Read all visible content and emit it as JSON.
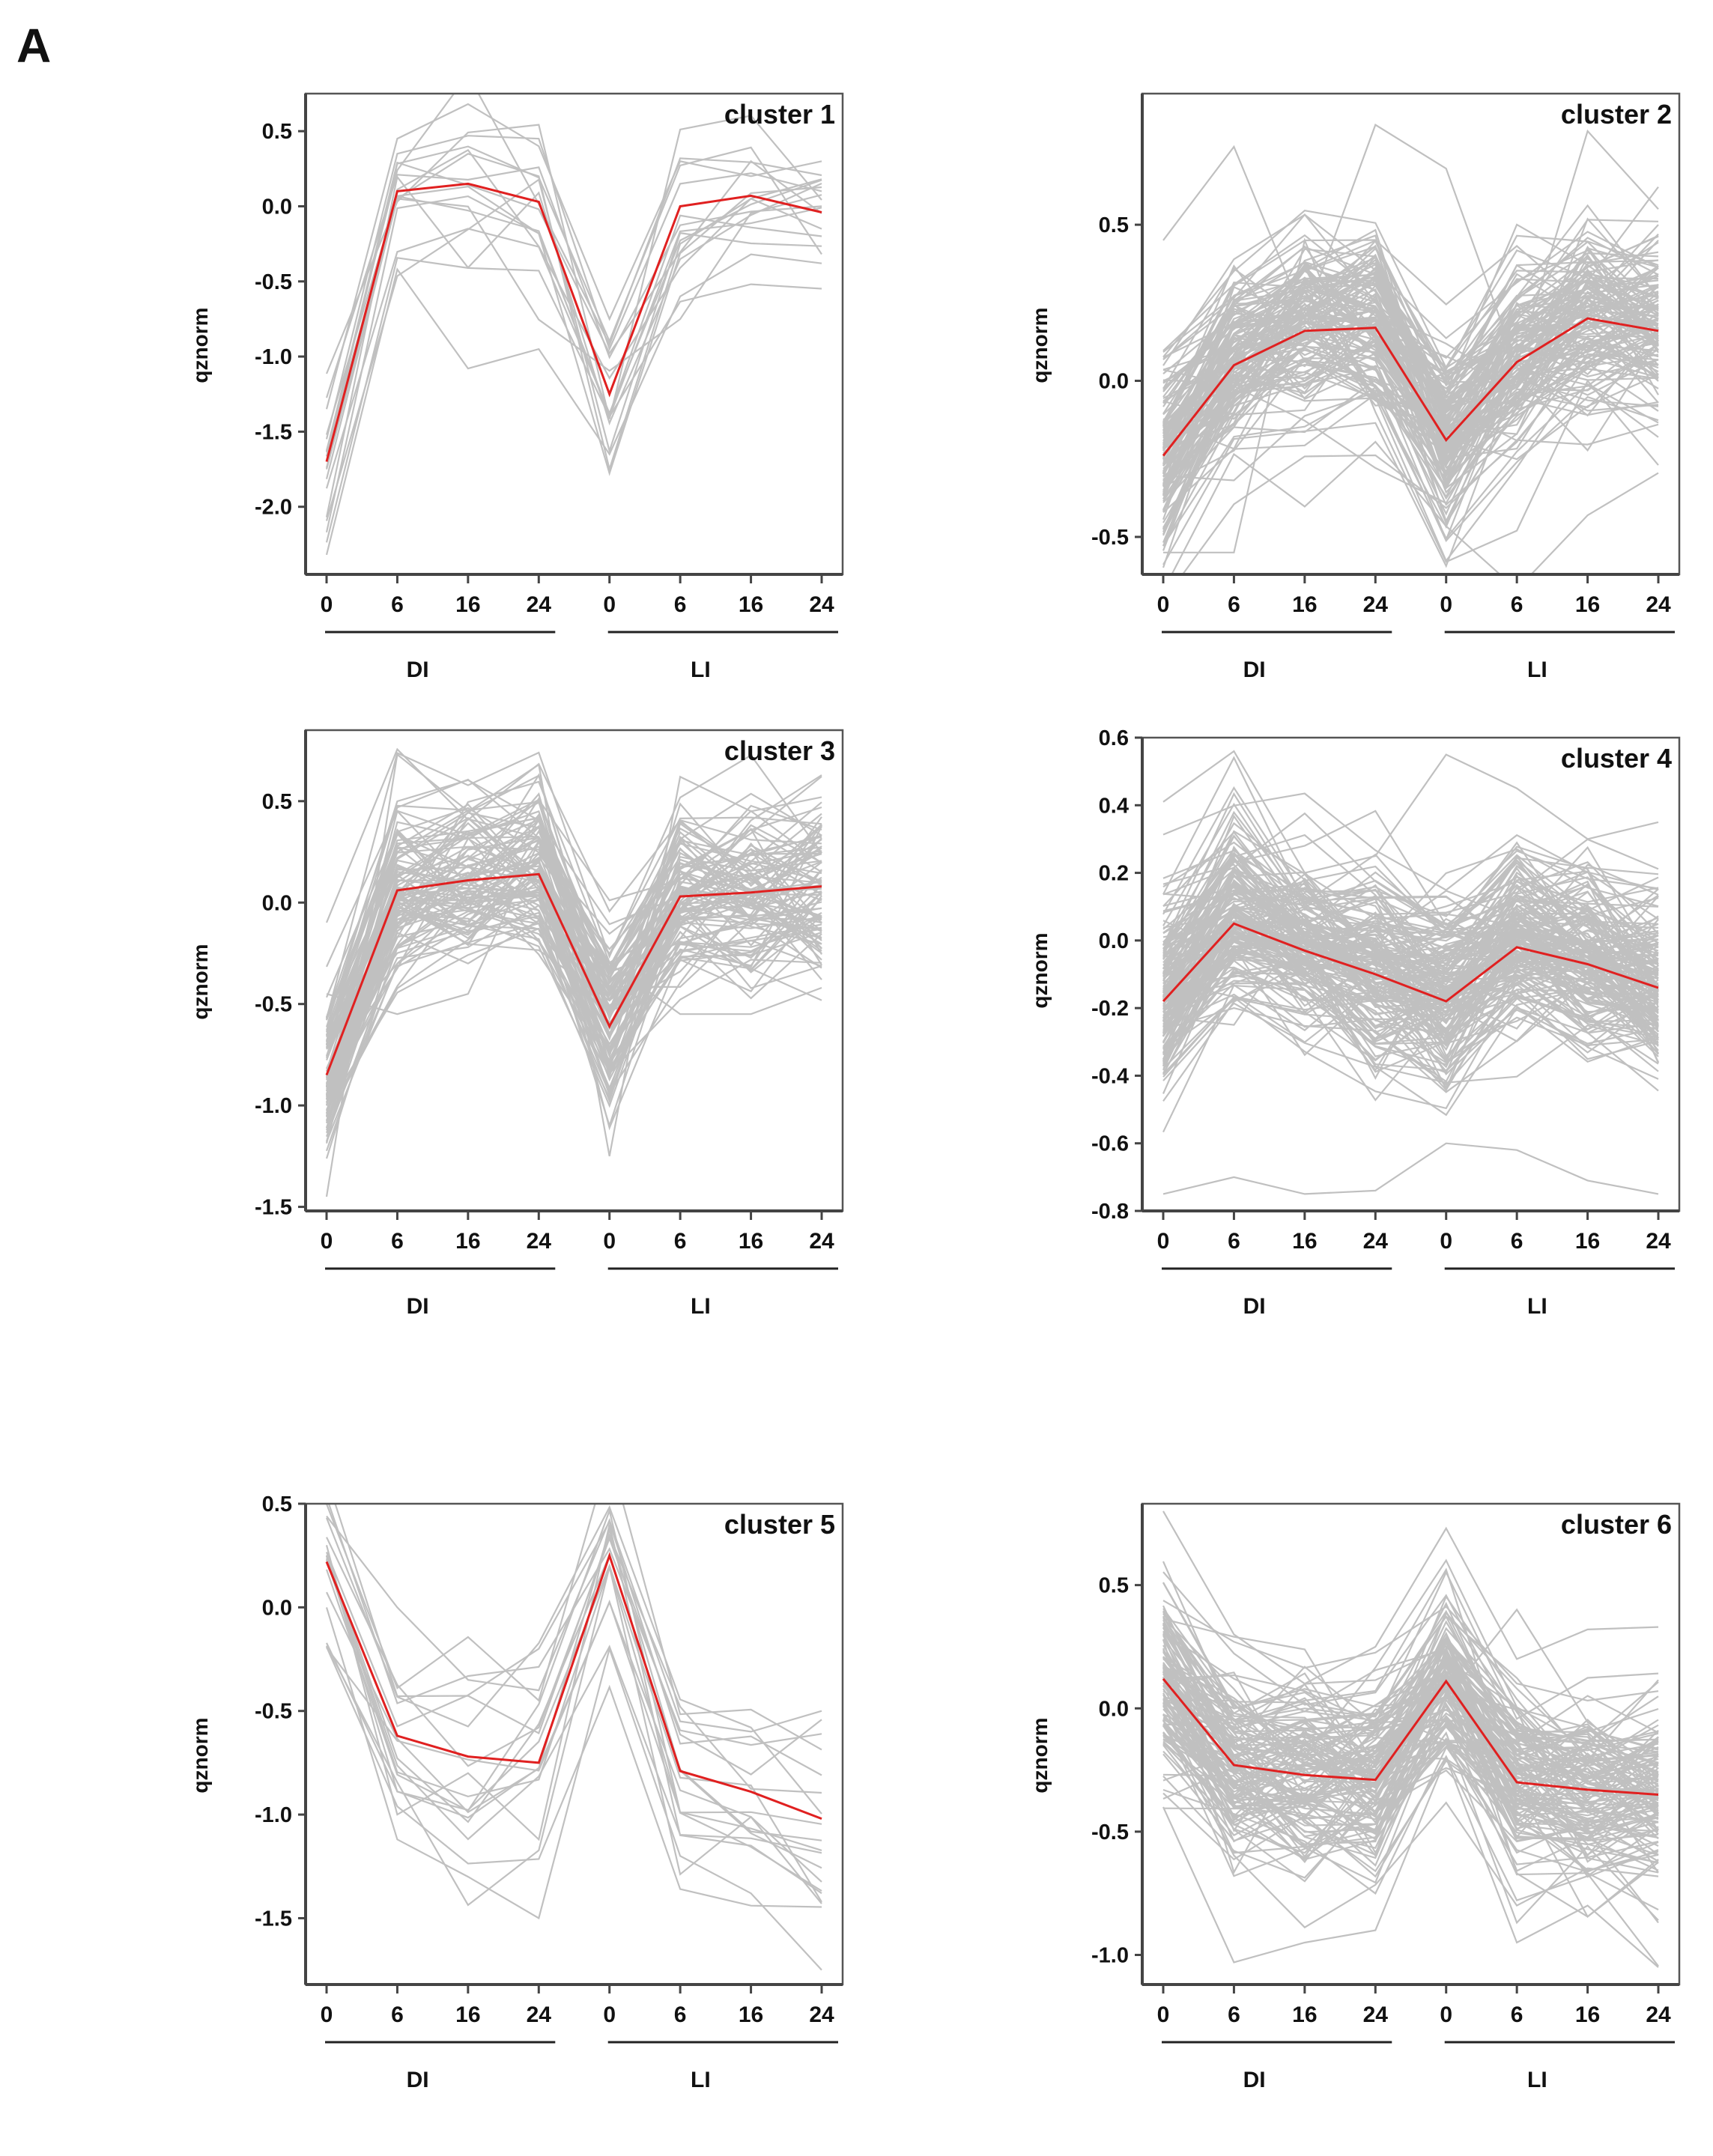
{
  "figure": {
    "panel_letter": "A",
    "colors": {
      "background_line": "#c0c0c0",
      "mean_line": "#e02020",
      "axis": "#444444",
      "text": "#111111"
    }
  },
  "chart_data": [
    {
      "type": "line",
      "title": "cluster 1",
      "ylabel": "qznorm",
      "ylim": [
        -2.45,
        0.75
      ],
      "yticks": [
        -2.0,
        -1.5,
        -1.0,
        -0.5,
        0.0,
        0.5
      ],
      "ytick_labels": [
        "-2.0",
        "-1.5",
        "-1.0",
        "-0.5",
        "0.0",
        "0.5"
      ],
      "x_tick_labels": [
        "0",
        "6",
        "16",
        "24",
        "0",
        "6",
        "16",
        "24"
      ],
      "groups": [
        {
          "label": "DI",
          "range": [
            0,
            3
          ]
        },
        {
          "label": "LI",
          "range": [
            4,
            7
          ]
        }
      ],
      "mean_series": [
        -1.7,
        0.1,
        0.15,
        0.03,
        -1.25,
        0.0,
        0.07,
        -0.04
      ],
      "background_count": 14,
      "sample_series": [
        [
          -2.32,
          -0.42,
          -1.08,
          -0.95,
          -1.65,
          -0.6,
          -0.32,
          -0.38
        ],
        [
          -1.35,
          0.45,
          0.68,
          0.4,
          -0.75,
          0.3,
          0.2,
          0.3
        ],
        [
          -1.55,
          0.35,
          0.47,
          0.45,
          -0.95,
          0.15,
          0.22,
          0.1
        ],
        [
          -1.75,
          0.05,
          0.35,
          0.2,
          -1.75,
          -0.25,
          0.05,
          -0.15
        ]
      ]
    },
    {
      "type": "line",
      "title": "cluster 2",
      "ylabel": "qznorm",
      "ylim": [
        -0.62,
        0.92
      ],
      "yticks": [
        -0.5,
        0.0,
        0.5
      ],
      "ytick_labels": [
        "-0.5",
        "0.0",
        "0.5"
      ],
      "x_tick_labels": [
        "0",
        "6",
        "16",
        "24",
        "0",
        "6",
        "16",
        "24"
      ],
      "groups": [
        {
          "label": "DI",
          "range": [
            0,
            3
          ]
        },
        {
          "label": "LI",
          "range": [
            4,
            7
          ]
        }
      ],
      "mean_series": [
        -0.24,
        0.05,
        0.16,
        0.17,
        -0.19,
        0.06,
        0.2,
        0.16
      ],
      "background_count": 140,
      "sample_series": [
        [
          0.45,
          0.75,
          0.2,
          0.82,
          0.68,
          0.05,
          0.8,
          0.55
        ],
        [
          -0.55,
          -0.55,
          0.45,
          -0.1,
          -0.58,
          -0.48,
          0.0,
          -0.27
        ]
      ]
    },
    {
      "type": "line",
      "title": "cluster 3",
      "ylabel": "qznorm",
      "ylim": [
        -1.52,
        0.85
      ],
      "yticks": [
        -1.5,
        -1.0,
        -0.5,
        0.0,
        0.5
      ],
      "ytick_labels": [
        "-1.5",
        "-1.0",
        "-0.5",
        "0.0",
        "0.5"
      ],
      "x_tick_labels": [
        "0",
        "6",
        "16",
        "24",
        "0",
        "6",
        "16",
        "24"
      ],
      "groups": [
        {
          "label": "DI",
          "range": [
            0,
            3
          ]
        },
        {
          "label": "LI",
          "range": [
            4,
            7
          ]
        }
      ],
      "mean_series": [
        -0.85,
        0.06,
        0.11,
        0.14,
        -0.61,
        0.03,
        0.05,
        0.08
      ],
      "background_count": 100,
      "sample_series": [
        [
          -1.45,
          0.73,
          0.45,
          0.68,
          -1.25,
          0.62,
          0.45,
          0.52
        ],
        [
          -0.45,
          -0.55,
          -0.45,
          0.3,
          -0.3,
          -0.55,
          -0.55,
          -0.42
        ]
      ]
    },
    {
      "type": "line",
      "title": "cluster 4",
      "ylabel": "qznorm",
      "ylim": [
        -0.8,
        0.6
      ],
      "yticks": [
        -0.8,
        -0.6,
        -0.4,
        -0.2,
        0.0,
        0.2,
        0.4,
        0.6
      ],
      "ytick_labels": [
        "-0.8",
        "-0.6",
        "-0.4",
        "-0.2",
        "0.0",
        "0.2",
        "0.4",
        "0.6"
      ],
      "x_tick_labels": [
        "0",
        "6",
        "16",
        "24",
        "0",
        "6",
        "16",
        "24"
      ],
      "groups": [
        {
          "label": "DI",
          "range": [
            0,
            3
          ]
        },
        {
          "label": "LI",
          "range": [
            4,
            7
          ]
        }
      ],
      "mean_series": [
        -0.18,
        0.05,
        -0.03,
        -0.1,
        -0.18,
        -0.02,
        -0.07,
        -0.14
      ],
      "background_count": 170,
      "sample_series": [
        [
          0.41,
          0.56,
          0.2,
          0.25,
          0.55,
          0.45,
          0.3,
          0.35
        ],
        [
          -0.75,
          -0.7,
          -0.75,
          -0.74,
          -0.6,
          -0.62,
          -0.71,
          -0.75
        ]
      ]
    },
    {
      "type": "line",
      "title": "cluster 5",
      "ylabel": "qznorm",
      "ylim": [
        -1.82,
        0.5
      ],
      "yticks": [
        -1.5,
        -1.0,
        -0.5,
        0.0,
        0.5
      ],
      "ytick_labels": [
        "-1.5",
        "-1.0",
        "-0.5",
        "0.0",
        "0.5"
      ],
      "x_tick_labels": [
        "0",
        "6",
        "16",
        "24",
        "0",
        "6",
        "16",
        "24"
      ],
      "groups": [
        {
          "label": "DI",
          "range": [
            0,
            3
          ]
        },
        {
          "label": "LI",
          "range": [
            4,
            7
          ]
        }
      ],
      "mean_series": [
        0.22,
        -0.62,
        -0.72,
        -0.75,
        0.25,
        -0.79,
        -0.89,
        -1.02
      ],
      "background_count": 16,
      "sample_series": [
        [
          0.44,
          0.0,
          -0.35,
          -0.4,
          0.42,
          -0.55,
          -0.6,
          -0.5
        ],
        [
          0.0,
          -1.12,
          -1.3,
          -1.5,
          -0.2,
          -1.2,
          -1.38,
          -1.75
        ],
        [
          0.3,
          -1.0,
          -0.8,
          -1.12,
          0.4,
          -1.1,
          -1.15,
          -1.38
        ]
      ]
    },
    {
      "type": "line",
      "title": "cluster 6",
      "ylabel": "qznorm",
      "ylim": [
        -1.12,
        0.83
      ],
      "yticks": [
        -1.0,
        -0.5,
        0.0,
        0.5
      ],
      "ytick_labels": [
        "-1.0",
        "-0.5",
        "0.0",
        "0.5"
      ],
      "x_tick_labels": [
        "0",
        "6",
        "16",
        "24",
        "0",
        "6",
        "16",
        "24"
      ],
      "groups": [
        {
          "label": "DI",
          "range": [
            0,
            3
          ]
        },
        {
          "label": "LI",
          "range": [
            4,
            7
          ]
        }
      ],
      "mean_series": [
        0.12,
        -0.23,
        -0.27,
        -0.29,
        0.11,
        -0.3,
        -0.33,
        -0.35
      ],
      "background_count": 130,
      "sample_series": [
        [
          0.8,
          0.3,
          0.1,
          0.25,
          0.73,
          0.2,
          0.32,
          0.33
        ],
        [
          -0.4,
          -1.03,
          -0.95,
          -0.9,
          -0.2,
          -0.95,
          -0.8,
          -1.05
        ]
      ]
    }
  ]
}
